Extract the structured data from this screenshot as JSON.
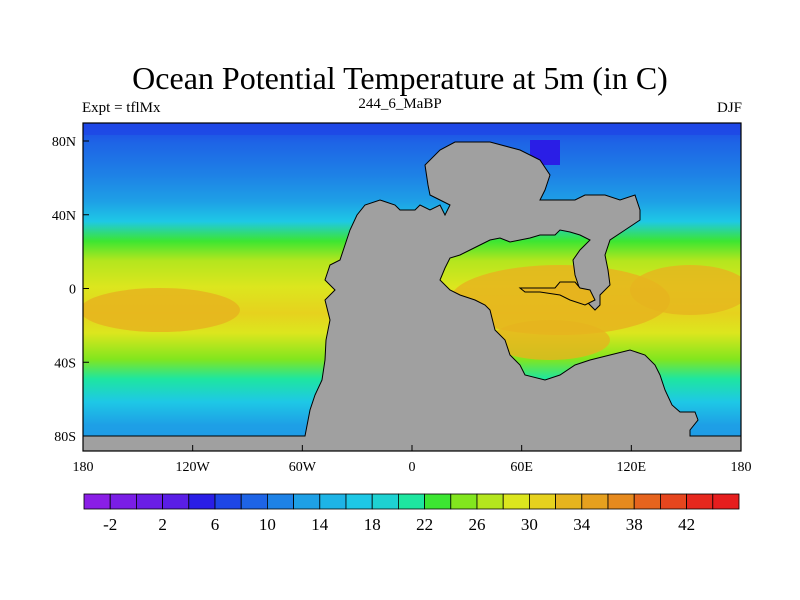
{
  "title": "Ocean Potential Temperature at 5m (in C)",
  "subtitle_left": "Expt = tflMx",
  "subtitle_center": "244_6_MaBP",
  "subtitle_right": "DJF",
  "x_ticks": [
    "180",
    "120W",
    "60W",
    "0",
    "60E",
    "120E",
    "180"
  ],
  "y_ticks": [
    "80N",
    "40N",
    "0",
    "40S",
    "80S"
  ],
  "land_color": "#a0a0a0",
  "colorbar": {
    "colors": [
      "#8a1ee6",
      "#7a1ee6",
      "#6a1ee6",
      "#5a1ee6",
      "#2a1ee6",
      "#1e46e6",
      "#1e64e6",
      "#1e82e6",
      "#1ea0e6",
      "#1eb4e6",
      "#1ec8e6",
      "#1ed2d2",
      "#1ee6a0",
      "#3ce632",
      "#82e61e",
      "#b4e61e",
      "#dce61e",
      "#e6d21e",
      "#e6b41e",
      "#e6a01e",
      "#e68a1e",
      "#e6641e",
      "#e6461e",
      "#e6281e",
      "#e61e1e"
    ],
    "labels": [
      "-2",
      "2",
      "6",
      "10",
      "14",
      "18",
      "22",
      "26",
      "30",
      "34",
      "38",
      "42"
    ]
  }
}
